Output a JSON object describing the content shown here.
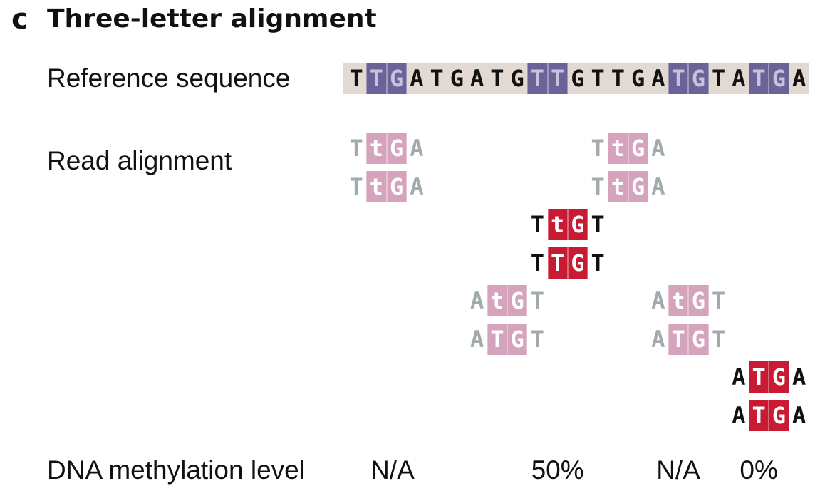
{
  "panel": {
    "letter": "c",
    "title": "Three-letter alignment"
  },
  "labels": {
    "reference": "Reference sequence",
    "reads": "Read alignment",
    "methylation": "DNA methylation level"
  },
  "colors": {
    "reference_band": "#e2dad2",
    "reference_highlight": "#6b6297",
    "unconverted_box": "#d6a3bd",
    "methylated_box": "#c81a32",
    "ref_text": "#111111",
    "ref_highlight_text": "#c7c3dc",
    "grey_text": "#a1aaad",
    "black_text": "#111111"
  },
  "reference": {
    "sequence": "TTGATGATGTTGTTGATGTATGA",
    "highlight_pairs": [
      1,
      9,
      16,
      20
    ]
  },
  "reads": [
    {
      "seq": "TtGA",
      "start": 0,
      "row": 0,
      "style": "grey"
    },
    {
      "seq": "TtGA",
      "start": 0,
      "row": 1,
      "style": "grey"
    },
    {
      "seq": "TtGA",
      "start": 12,
      "row": 0,
      "style": "grey"
    },
    {
      "seq": "TtGA",
      "start": 12,
      "row": 1,
      "style": "grey"
    },
    {
      "seq": "TtGT",
      "start": 9,
      "row": 2,
      "style": "red"
    },
    {
      "seq": "TTGT",
      "start": 9,
      "row": 3,
      "style": "red"
    },
    {
      "seq": "AtGT",
      "start": 6,
      "row": 4,
      "style": "grey"
    },
    {
      "seq": "ATGT",
      "start": 6,
      "row": 5,
      "style": "grey"
    },
    {
      "seq": "AtGT",
      "start": 15,
      "row": 4,
      "style": "grey"
    },
    {
      "seq": "ATGT",
      "start": 15,
      "row": 5,
      "style": "grey"
    },
    {
      "seq": "ATGA",
      "start": 19,
      "row": 6,
      "style": "red"
    },
    {
      "seq": "ATGA",
      "start": 19,
      "row": 7,
      "style": "red"
    }
  ],
  "methylation_levels": [
    {
      "text": "N/A",
      "column": 2.3
    },
    {
      "text": "50%",
      "column": 10.5
    },
    {
      "text": "N/A",
      "column": 16.5
    },
    {
      "text": "0%",
      "column": 20.5
    }
  ]
}
